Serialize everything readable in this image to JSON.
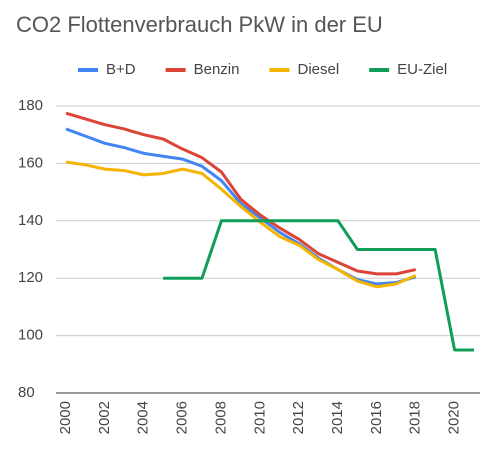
{
  "chart_data": {
    "type": "line",
    "title": "CO2 Flottenverbrauch PkW in der EU",
    "x": [
      2000,
      2001,
      2002,
      2003,
      2004,
      2005,
      2006,
      2007,
      2008,
      2009,
      2010,
      2011,
      2012,
      2013,
      2014,
      2015,
      2016,
      2017,
      2018,
      2019,
      2020,
      2021
    ],
    "series": [
      {
        "name": "B+D",
        "color": "#4285f4",
        "values": [
          172,
          169.5,
          167,
          165.5,
          163.5,
          162.5,
          161.5,
          159,
          154,
          146,
          141,
          136,
          132,
          127,
          123,
          119.5,
          118,
          118.5,
          120.5,
          null,
          null,
          null
        ]
      },
      {
        "name": "Benzin",
        "color": "#db4437",
        "values": [
          177.5,
          175.5,
          173.5,
          172,
          170,
          168.5,
          165,
          162,
          157,
          147.5,
          142,
          137.5,
          133.5,
          128.5,
          125.5,
          122.5,
          121.5,
          121.5,
          123,
          null,
          null,
          null
        ]
      },
      {
        "name": "Diesel",
        "color": "#f4b400",
        "values": [
          160.5,
          159.5,
          158,
          157.5,
          156,
          156.5,
          158,
          156.5,
          151,
          145,
          139.5,
          134.5,
          131.5,
          126.5,
          123,
          119,
          117,
          118,
          121,
          null,
          null,
          null
        ]
      },
      {
        "name": "EU-Ziel",
        "color": "#0f9d58",
        "values": [
          null,
          null,
          null,
          null,
          null,
          120,
          120,
          120,
          140,
          140,
          140,
          140,
          140,
          140,
          140,
          130,
          130,
          130,
          130,
          130,
          95,
          95
        ]
      }
    ],
    "xlim": [
      2000,
      2021
    ],
    "xticks": [
      2000,
      2002,
      2004,
      2006,
      2008,
      2010,
      2012,
      2014,
      2016,
      2018,
      2020
    ],
    "ylim": [
      80,
      180
    ],
    "yticks": [
      80,
      100,
      120,
      140,
      160,
      180
    ],
    "grid": true
  }
}
